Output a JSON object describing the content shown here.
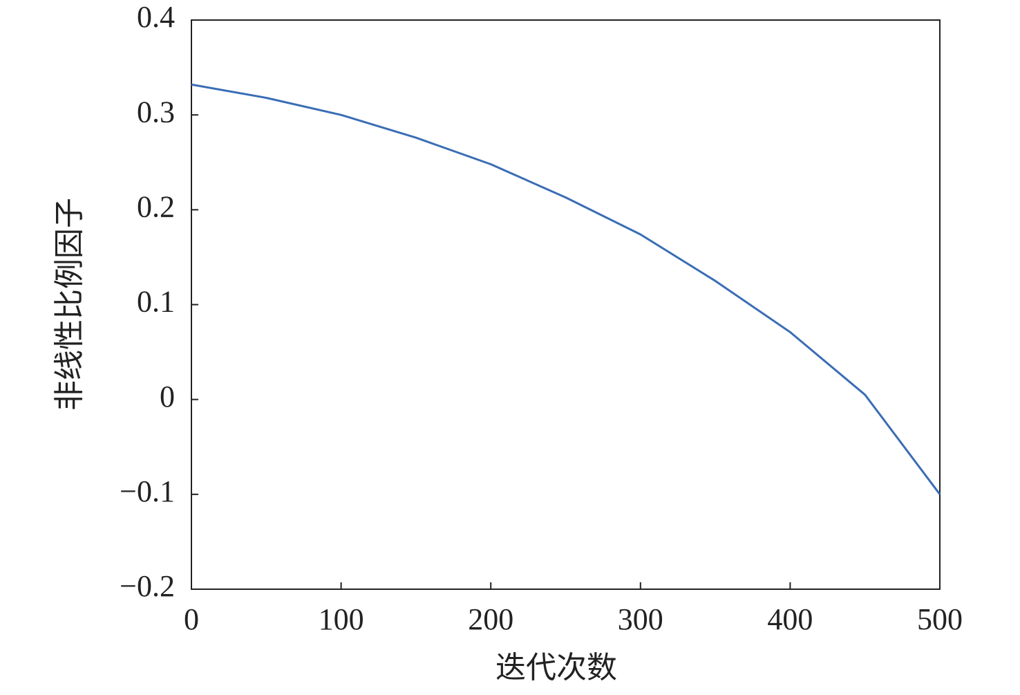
{
  "chart_data": {
    "type": "line",
    "x_label": "迭代次数",
    "y_label": "非线性比例因子",
    "x": [
      0,
      50,
      100,
      150,
      200,
      250,
      300,
      350,
      400,
      450,
      500
    ],
    "values": [
      0.332,
      0.318,
      0.3,
      0.276,
      0.248,
      0.213,
      0.174,
      0.125,
      0.071,
      0.005,
      -0.1
    ],
    "color": "#3a6db5",
    "xlim": [
      0,
      500
    ],
    "xticks": [
      0,
      100,
      200,
      300,
      400,
      500
    ],
    "ylim": [
      -0.2,
      0.4
    ],
    "yticks": [
      {
        "value": -0.2,
        "label": "−0.2"
      },
      {
        "value": -0.1,
        "label": "−0.1"
      },
      0,
      0.1,
      0.2,
      0.3,
      0.4
    ]
  }
}
